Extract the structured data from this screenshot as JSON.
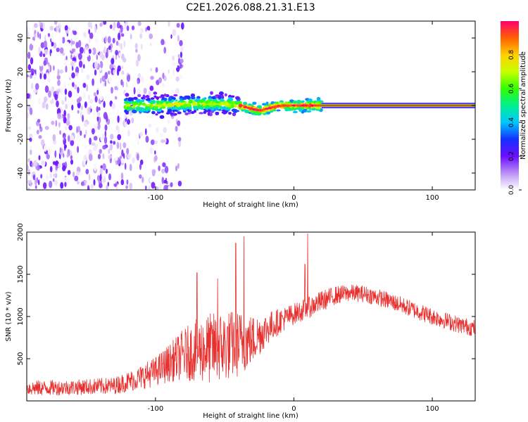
{
  "title": "C2E1.2026.088.21.31.E13",
  "colors": {
    "snr_line": "#e8302e",
    "stripe_core": "#e83a2e",
    "axis": "#000000"
  },
  "chart_data": [
    {
      "id": "spectrogram",
      "type": "heatmap",
      "xlabel": "Height of straight line (km)",
      "ylabel": "Frequency (Hz)",
      "xlim": [
        -193,
        131
      ],
      "ylim": [
        -50,
        50
      ],
      "xticks": [
        -100,
        0,
        100
      ],
      "xtick_labels": [
        "-100",
        "0",
        "100"
      ],
      "yticks": [
        -40,
        -20,
        0,
        20,
        40
      ],
      "ytick_labels": [
        "-40",
        "-20",
        "0",
        "20",
        "40"
      ],
      "description_of_content": [
        {
          "region": "scattered noise",
          "x_range": [
            -193,
            -80
          ],
          "y_range": [
            -50,
            50
          ],
          "amplitude": [
            0.0,
            0.2
          ]
        },
        {
          "region": "transition band",
          "x_range": [
            -122,
            20
          ],
          "y_range": [
            -8,
            8
          ],
          "amplitude": [
            0.2,
            0.9
          ]
        },
        {
          "region": "steady carrier",
          "x_range": [
            20,
            131
          ],
          "y_range": [
            -1.5,
            1.5
          ],
          "amplitude": [
            0.8,
            1.0
          ]
        }
      ],
      "ridge": {
        "x": [
          -122,
          -110,
          -100,
          -90,
          -80,
          -70,
          -60,
          -50,
          -40,
          -35,
          -30,
          -25,
          -20,
          -15,
          -10,
          -5,
          0,
          5,
          10,
          15,
          20,
          131
        ],
        "frequency_hz": [
          0,
          0,
          0,
          0.5,
          1,
          1,
          1,
          1,
          0,
          -1,
          -2,
          -3,
          -2,
          -1,
          0,
          0,
          0,
          0,
          0,
          0,
          0,
          0
        ]
      }
    },
    {
      "id": "colorbar",
      "type": "colorbar",
      "label": "Normalized spectral amplitude",
      "range": [
        0,
        1
      ],
      "ticks": [
        0.0,
        0.2,
        0.4,
        0.6,
        0.8
      ],
      "tick_labels": [
        "0.0",
        "0.2",
        "0.4",
        "0.6",
        "0.8"
      ],
      "stops": [
        {
          "value": 0.0,
          "color": "#ffffff"
        },
        {
          "value": 0.08,
          "color": "#c9a8f5"
        },
        {
          "value": 0.2,
          "color": "#6a0dff"
        },
        {
          "value": 0.3,
          "color": "#1530ff"
        },
        {
          "value": 0.4,
          "color": "#00c8ff"
        },
        {
          "value": 0.5,
          "color": "#00f090"
        },
        {
          "value": 0.6,
          "color": "#30ff00"
        },
        {
          "value": 0.7,
          "color": "#c8ff00"
        },
        {
          "value": 0.8,
          "color": "#ffd000"
        },
        {
          "value": 0.9,
          "color": "#ff6000"
        },
        {
          "value": 1.0,
          "color": "#ff0070"
        }
      ]
    },
    {
      "id": "snr",
      "type": "line",
      "xlabel": "Height of straight line (km)",
      "ylabel": "SNR (10 * v/v)",
      "xlim": [
        -193,
        131
      ],
      "ylim": [
        0,
        2000
      ],
      "xticks": [
        -100,
        0,
        100
      ],
      "xtick_labels": [
        "-100",
        "0",
        "100"
      ],
      "yticks": [
        500,
        1000,
        1500,
        2000
      ],
      "ytick_labels": [
        "500",
        "1000",
        "1500",
        "2000"
      ],
      "series": [
        {
          "name": "SNR",
          "envelope_x": [
            -193,
            -160,
            -130,
            -115,
            -100,
            -90,
            -80,
            -70,
            -60,
            -50,
            -40,
            -30,
            -20,
            -10,
            0,
            10,
            20,
            30,
            40,
            50,
            60,
            70,
            80,
            90,
            100,
            110,
            120,
            131
          ],
          "envelope_mean": [
            150,
            160,
            180,
            250,
            350,
            450,
            550,
            600,
            620,
            650,
            680,
            720,
            850,
            950,
            1030,
            1100,
            1180,
            1250,
            1280,
            1270,
            1230,
            1180,
            1120,
            1060,
            1000,
            950,
            900,
            860
          ],
          "envelope_spread": [
            180,
            180,
            200,
            260,
            350,
            450,
            600,
            750,
            850,
            850,
            800,
            600,
            400,
            300,
            250,
            250,
            250,
            220,
            200,
            200,
            200,
            200,
            200,
            200,
            200,
            200,
            200,
            200
          ],
          "peaks": [
            {
              "x": -36,
              "y": 1950
            },
            {
              "x": -42,
              "y": 1870
            },
            {
              "x": -70,
              "y": 1520
            },
            {
              "x": -55,
              "y": 1450
            },
            {
              "x": 10,
              "y": 1980
            },
            {
              "x": 8,
              "y": 1620
            }
          ]
        }
      ]
    }
  ]
}
